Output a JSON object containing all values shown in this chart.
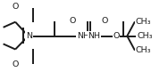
{
  "bg_color": "#ffffff",
  "bond_color": "#1a1a1a",
  "bond_lw": 1.4,
  "fig_w": 1.88,
  "fig_h": 0.81,
  "dpi": 100,
  "font_size": 6.8,
  "font_color": "#1a1a1a",
  "xlim": [
    -0.02,
    1.02
  ],
  "ylim": [
    0.0,
    1.0
  ]
}
